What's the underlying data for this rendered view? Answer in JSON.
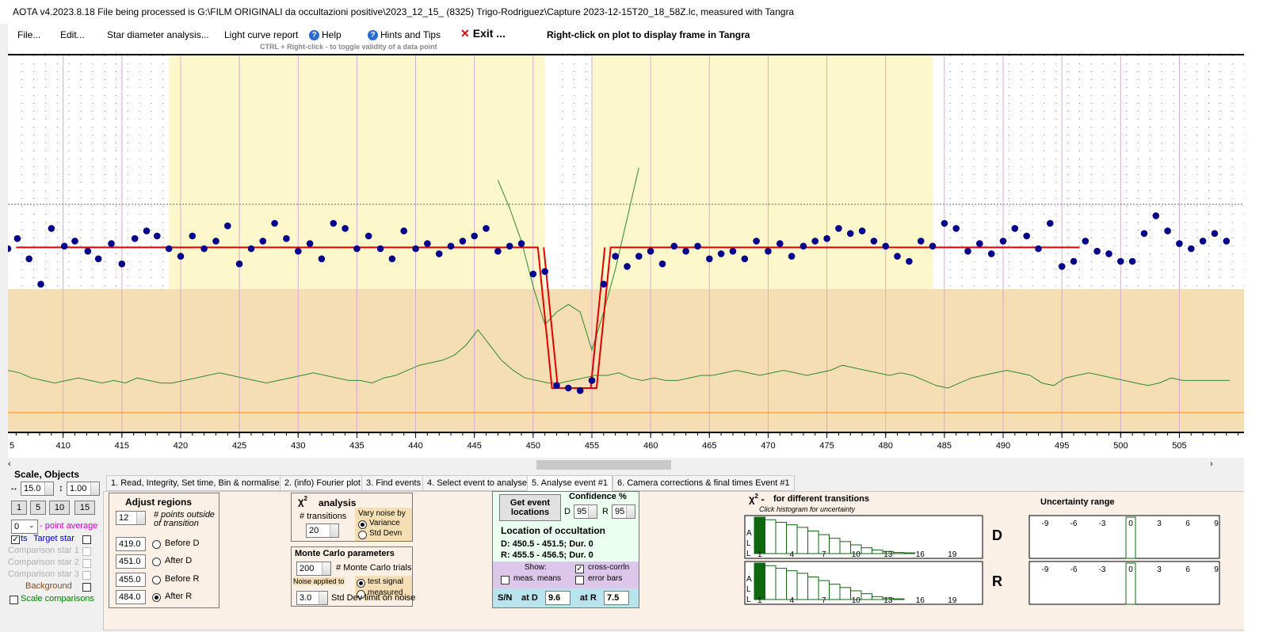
{
  "window": {
    "title": "AOTA v4.2023.8.18    File being processed is G:\\FILM ORIGINALI da occultazioni positive\\2023_12_15_ (8325) Trigo-Rodriguez\\Capture 2023-12-15T20_18_58Z.lc, measured with Tangra"
  },
  "menu": {
    "file": "File...",
    "edit": "Edit...",
    "star_diameter": "Star diameter analysis...",
    "light_curve_report": "Light curve report",
    "help": "Help",
    "hints": "Hints and Tips",
    "exit": "Exit ...",
    "right_click_note": "Right-click on plot to display frame in Tangra",
    "ctrl_note": "CTRL + Right-click  -  to toggle validity of a data point"
  },
  "chart_data": {
    "type": "scatter",
    "x_ticks": [
      410,
      415,
      420,
      425,
      430,
      435,
      440,
      445,
      450,
      455,
      460,
      465,
      470,
      475,
      480,
      485,
      490,
      495,
      500,
      505
    ],
    "x_first_partial_label": "5",
    "x_range": [
      405.3,
      510.5
    ],
    "y_range": [
      0,
      1
    ],
    "regions": {
      "before_d": [
        419.0,
        451.0
      ],
      "after_r": [
        455.0,
        484.0
      ]
    },
    "points": [
      [
        405.3,
        0.7
      ],
      [
        406.1,
        0.74
      ],
      [
        407.1,
        0.66
      ],
      [
        408.1,
        0.56
      ],
      [
        409.0,
        0.78
      ],
      [
        410.1,
        0.71
      ],
      [
        411.0,
        0.73
      ],
      [
        412.1,
        0.69
      ],
      [
        413.0,
        0.66
      ],
      [
        414.1,
        0.72
      ],
      [
        415.0,
        0.64
      ],
      [
        416.1,
        0.74
      ],
      [
        417.1,
        0.77
      ],
      [
        418.0,
        0.75
      ],
      [
        419.0,
        0.7
      ],
      [
        420.0,
        0.67
      ],
      [
        421.0,
        0.75
      ],
      [
        422.0,
        0.7
      ],
      [
        423.0,
        0.73
      ],
      [
        424.0,
        0.79
      ],
      [
        425.0,
        0.64
      ],
      [
        426.0,
        0.7
      ],
      [
        427.0,
        0.73
      ],
      [
        428.0,
        0.8
      ],
      [
        429.0,
        0.74
      ],
      [
        430.0,
        0.69
      ],
      [
        431.0,
        0.72
      ],
      [
        432.0,
        0.66
      ],
      [
        433.0,
        0.8
      ],
      [
        434.0,
        0.78
      ],
      [
        435.0,
        0.7
      ],
      [
        436.0,
        0.75
      ],
      [
        437.0,
        0.7
      ],
      [
        438.0,
        0.66
      ],
      [
        439.0,
        0.77
      ],
      [
        440.0,
        0.7
      ],
      [
        441.0,
        0.72
      ],
      [
        442.0,
        0.68
      ],
      [
        443.0,
        0.71
      ],
      [
        444.0,
        0.73
      ],
      [
        445.0,
        0.75
      ],
      [
        446.0,
        0.78
      ],
      [
        447.0,
        0.69
      ],
      [
        448.0,
        0.71
      ],
      [
        449.0,
        0.72
      ],
      [
        450.0,
        0.6
      ],
      [
        451.0,
        0.61
      ],
      [
        452.0,
        0.16
      ],
      [
        453.0,
        0.15
      ],
      [
        454.0,
        0.14
      ],
      [
        455.0,
        0.18
      ],
      [
        456.0,
        0.56
      ],
      [
        457.0,
        0.67
      ],
      [
        458.0,
        0.63
      ],
      [
        459.0,
        0.67
      ],
      [
        460.0,
        0.69
      ],
      [
        461.0,
        0.64
      ],
      [
        462.0,
        0.71
      ],
      [
        463.0,
        0.69
      ],
      [
        464.0,
        0.71
      ],
      [
        465.0,
        0.66
      ],
      [
        466.0,
        0.68
      ],
      [
        467.0,
        0.69
      ],
      [
        468.0,
        0.66
      ],
      [
        469.0,
        0.73
      ],
      [
        470.0,
        0.69
      ],
      [
        471.0,
        0.72
      ],
      [
        472.0,
        0.67
      ],
      [
        473.0,
        0.71
      ],
      [
        474.0,
        0.73
      ],
      [
        475.0,
        0.74
      ],
      [
        476.0,
        0.78
      ],
      [
        477.0,
        0.76
      ],
      [
        478.0,
        0.77
      ],
      [
        479.0,
        0.73
      ],
      [
        480.0,
        0.71
      ],
      [
        481.0,
        0.67
      ],
      [
        482.0,
        0.65
      ],
      [
        483.0,
        0.73
      ],
      [
        484.0,
        0.71
      ],
      [
        485.0,
        0.8
      ],
      [
        486.0,
        0.78
      ],
      [
        487.0,
        0.69
      ],
      [
        488.0,
        0.72
      ],
      [
        489.0,
        0.68
      ],
      [
        490.0,
        0.73
      ],
      [
        491.0,
        0.78
      ],
      [
        492.0,
        0.75
      ],
      [
        493.0,
        0.7
      ],
      [
        494.0,
        0.8
      ],
      [
        495.0,
        0.63
      ],
      [
        496.0,
        0.65
      ],
      [
        497.0,
        0.73
      ],
      [
        498.0,
        0.69
      ],
      [
        499.0,
        0.68
      ],
      [
        500.0,
        0.65
      ],
      [
        501.0,
        0.65
      ],
      [
        502.0,
        0.76
      ],
      [
        503.0,
        0.83
      ],
      [
        504.0,
        0.77
      ],
      [
        505.0,
        0.72
      ],
      [
        506.0,
        0.7
      ],
      [
        507.0,
        0.73
      ],
      [
        508.0,
        0.76
      ],
      [
        509.0,
        0.73
      ]
    ]
  },
  "tabs": [
    {
      "label": "1.  Read, Integrity, Set time, Bin & normalise"
    },
    {
      "label": "2. (info)  Fourier plot"
    },
    {
      "label": "3. Find events"
    },
    {
      "label": "4. Select event to analyse"
    },
    {
      "label": "5. Analyse event #1"
    },
    {
      "label": "6. Camera corrections & final times Event #1"
    }
  ],
  "scale": {
    "heading": "Scale,  Objects",
    "h_scale": "15.0",
    "v_scale": "1.00",
    "buttons": [
      "1",
      "5",
      "10",
      "15"
    ],
    "point_average": "0",
    "point_average_label": "- point average",
    "target_star": "Target star",
    "comp1": "Comparison star 1",
    "comp2": "Comparison star 2",
    "comp3": "Comparison star 3",
    "background": "Background",
    "scale_comparisons": "Scale comparisons",
    "cut_off_label": "ts"
  },
  "adjust": {
    "heading": "Adjust regions",
    "points_outside": "12",
    "points_label": "# points outside of transition",
    "before_d": "419.0",
    "after_d": "451.0",
    "before_r": "455.0",
    "after_r": "484.0",
    "before_d_label": "Before D",
    "after_d_label": "After D",
    "before_r_label": "Before R",
    "after_r_label": "After R"
  },
  "chi2": {
    "heading": "analysis",
    "transitions_label": "# transitions",
    "transitions": "20",
    "vary_label": "Vary noise by",
    "variance": "Variance",
    "std_devn": "Std Devn"
  },
  "monte": {
    "heading": "Monte Carlo parameters",
    "trials": "200",
    "trials_label": "# Monte Carlo trials",
    "noise_applied": "Noise applied to",
    "test_signal": "test signal",
    "measured": "measured",
    "sd_limit": "3.0",
    "sd_label": "Std Dev limit on noise"
  },
  "event": {
    "get_event": "Get event locations",
    "confidence": "Confidence %",
    "d_label": "D",
    "d_value": "95",
    "r_label": "R",
    "r_value": "95",
    "location_title": "Location of occultation",
    "d_line": "D: 450.5 - 451.5; Dur. 0",
    "r_line": "R: 455.5 - 456.5; Dur. 0",
    "show": "Show:",
    "meas_means": "meas. means",
    "cross_corrln": "cross-corrln",
    "error_bars": "error bars",
    "sn": "S/N",
    "at_d": "at D",
    "sn_d": "9.6",
    "at_r": "at R",
    "sn_r": "7.5"
  },
  "chi_hist": {
    "title": "for different transitions",
    "subtitle": "Click histogram for uncertainty",
    "all_letters": [
      "A",
      "L",
      "L"
    ],
    "labels": [
      "1",
      "4",
      "7",
      "10",
      "13",
      "16",
      "19"
    ],
    "d_values": [
      1.0,
      0.93,
      0.86,
      0.79,
      0.72,
      0.62,
      0.52,
      0.42,
      0.33,
      0.24,
      0.16,
      0.1,
      0.06,
      0.03,
      0.02,
      0.0,
      0.0,
      0.0,
      0.0
    ],
    "r_values": [
      1.0,
      0.93,
      0.86,
      0.79,
      0.72,
      0.62,
      0.52,
      0.42,
      0.33,
      0.24,
      0.16,
      0.08,
      0.04,
      0.02,
      0.0,
      0.0,
      0.0,
      0.0,
      0.0
    ],
    "d": "D",
    "r": "R"
  },
  "uncertainty": {
    "title": "Uncertainty range",
    "ticks": [
      "-9",
      "-6",
      "-3",
      "0",
      "3",
      "6",
      "9"
    ]
  },
  "colors": {
    "yellow_region": "#fdf8cc",
    "tan_region": "#f5deb3",
    "point": "#00008b",
    "model_line": "#e00000",
    "noise_line": "#2e8b2e",
    "baseline": "#ff8c00"
  }
}
